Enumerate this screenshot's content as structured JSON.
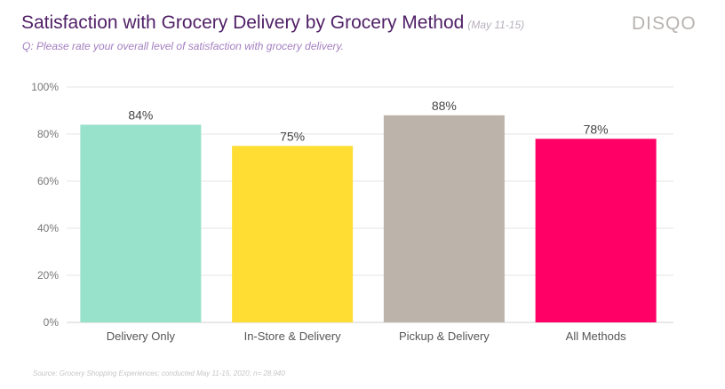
{
  "header": {
    "title": "Satisfaction with Grocery Delivery by Grocery Method",
    "date": "(May 11-15)",
    "subtitle": "Q: Please rate your overall level of satisfaction with grocery delivery.",
    "logo": "DISQO"
  },
  "footer": {
    "source": "Source: Grocery Shopping Experiences; conducted May 11-15, 2020; n= 28,940"
  },
  "chart_data": {
    "type": "bar",
    "title": "Satisfaction with Grocery Delivery by Grocery Method",
    "categories": [
      "Delivery Only",
      "In-Store & Delivery",
      "Pickup & Delivery",
      "All Methods"
    ],
    "values": [
      84,
      75,
      88,
      78
    ],
    "data_labels": [
      "84%",
      "75%",
      "88%",
      "78%"
    ],
    "colors": [
      "#98e2cb",
      "#ffdd33",
      "#bcb3aa",
      "#ff0066"
    ],
    "ylim": [
      0,
      100
    ],
    "yticks": [
      0,
      20,
      40,
      60,
      80,
      100
    ],
    "ytick_labels": [
      "0%",
      "20%",
      "40%",
      "60%",
      "80%",
      "100%"
    ],
    "grid": true,
    "xlabel": "",
    "ylabel": ""
  }
}
